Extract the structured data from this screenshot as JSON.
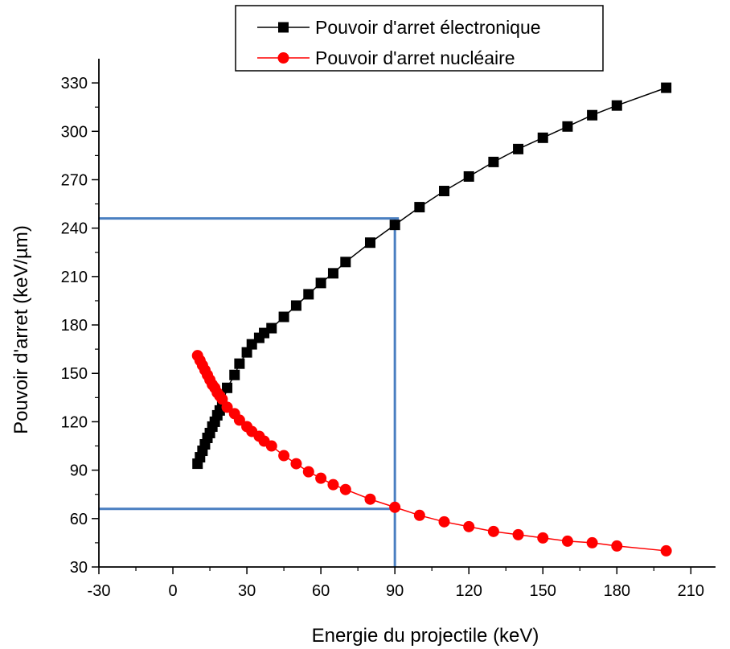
{
  "chart_data": {
    "type": "line",
    "xlabel": "Energie du projectile (keV)",
    "ylabel": "Pouvoir d'arret (keV/µm)",
    "xlim": [
      -30,
      220
    ],
    "ylim": [
      30,
      345
    ],
    "xticks": [
      -30,
      0,
      30,
      60,
      90,
      120,
      150,
      180,
      210
    ],
    "yticks": [
      30,
      60,
      90,
      120,
      150,
      180,
      210,
      240,
      270,
      300,
      330
    ],
    "grid": false,
    "legend_position": "top-right",
    "series": [
      {
        "name": "Pouvoir d'arret électronique",
        "color": "#000000",
        "marker": "square",
        "x": [
          10,
          11,
          12,
          13,
          14,
          15,
          16,
          17,
          18,
          19,
          20,
          22,
          25,
          27,
          30,
          32,
          35,
          37,
          40,
          45,
          50,
          55,
          60,
          65,
          70,
          80,
          90,
          100,
          110,
          120,
          130,
          140,
          150,
          160,
          170,
          180,
          200
        ],
        "y": [
          94,
          98,
          102,
          106,
          110,
          113,
          117,
          120,
          124,
          127,
          130,
          141,
          149,
          156,
          163,
          168,
          172,
          175,
          178,
          185,
          192,
          199,
          206,
          212,
          219,
          231,
          242,
          253,
          263,
          272,
          281,
          289,
          296,
          303,
          310,
          316,
          327
        ]
      },
      {
        "name": "Pouvoir d'arret nucléaire",
        "color": "#ff0000",
        "marker": "circle",
        "x": [
          10,
          11,
          12,
          13,
          14,
          15,
          16,
          17,
          18,
          19,
          20,
          22,
          25,
          27,
          30,
          32,
          35,
          37,
          40,
          45,
          50,
          55,
          60,
          65,
          70,
          80,
          90,
          100,
          110,
          120,
          130,
          140,
          150,
          160,
          170,
          180,
          200
        ],
        "y": [
          161,
          158,
          155,
          152,
          149,
          146,
          143,
          141,
          138,
          136,
          134,
          129,
          125,
          121,
          117,
          114,
          111,
          108,
          105,
          99,
          94,
          89,
          85,
          81,
          78,
          72,
          67,
          62,
          58,
          55,
          52,
          50,
          48,
          46,
          45,
          43,
          40
        ]
      }
    ],
    "reference_lines": {
      "color": "#4a7fc1",
      "horizontal": [
        246,
        66
      ],
      "vertical": [
        90
      ]
    }
  }
}
